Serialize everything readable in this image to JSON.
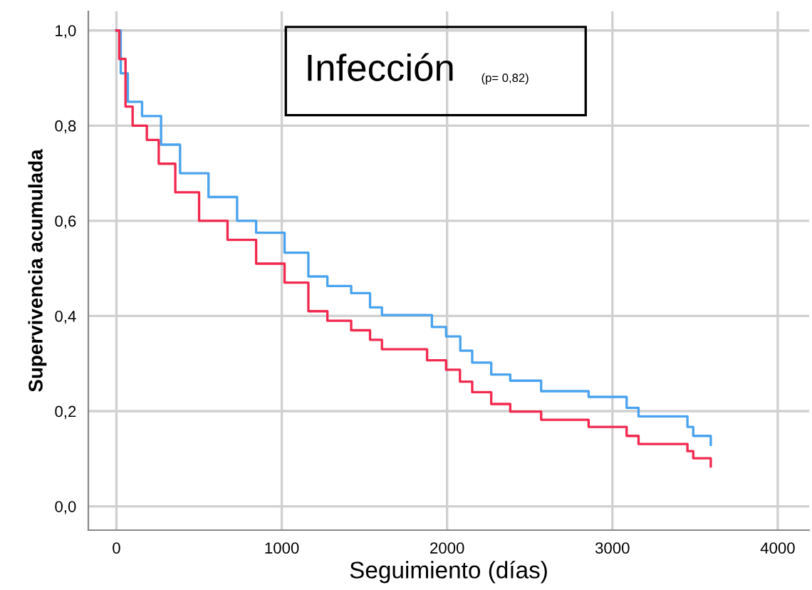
{
  "chart_data": {
    "type": "step",
    "title": "Infección",
    "annotations": [
      "(p= 0,82)"
    ],
    "xlabel": "Seguimiento (días)",
    "ylabel": "Supervivencia acumulada",
    "xlim": [
      -170,
      4190
    ],
    "ylim": [
      -0.05,
      1.04
    ],
    "xticks": [
      0,
      1000,
      2000,
      3000,
      4000
    ],
    "yticks": [
      {
        "value": 0,
        "label": "0,0"
      },
      {
        "value": 0.2,
        "label": "0,2"
      },
      {
        "value": 0.4,
        "label": "0,4"
      },
      {
        "value": 0.6,
        "label": "0,6"
      },
      {
        "value": 0.8,
        "label": "0,8"
      },
      {
        "value": 1.0,
        "label": "1,0"
      }
    ],
    "grid": true,
    "legend": false,
    "series": [
      {
        "color": "#4aa3ee",
        "x": [
          0,
          26,
          69,
          155,
          270,
          385,
          557,
          730,
          845,
          1017,
          1161,
          1276,
          1420,
          1534,
          1606,
          1779,
          1908,
          1994,
          2080,
          2152,
          2267,
          2382,
          2569,
          2856,
          3086,
          3158,
          3454,
          3489,
          3595
        ],
        "values": [
          1.0,
          0.91,
          0.85,
          0.82,
          0.76,
          0.7,
          0.65,
          0.6,
          0.575,
          0.533,
          0.483,
          0.463,
          0.448,
          0.418,
          0.402,
          0.402,
          0.377,
          0.357,
          0.327,
          0.302,
          0.277,
          0.264,
          0.242,
          0.23,
          0.207,
          0.189,
          0.167,
          0.148,
          0.129
        ]
      },
      {
        "color": "#f2294f",
        "x": [
          0,
          17,
          55,
          98,
          184,
          256,
          356,
          500,
          672,
          845,
          1017,
          1161,
          1276,
          1420,
          1534,
          1606,
          1779,
          1879,
          1994,
          2078,
          2152,
          2267,
          2382,
          2569,
          2856,
          3086,
          3158,
          3454,
          3489,
          3595
        ],
        "values": [
          1.0,
          0.94,
          0.84,
          0.8,
          0.77,
          0.72,
          0.66,
          0.6,
          0.56,
          0.51,
          0.47,
          0.41,
          0.39,
          0.37,
          0.35,
          0.33,
          0.33,
          0.307,
          0.287,
          0.262,
          0.24,
          0.215,
          0.199,
          0.182,
          0.167,
          0.148,
          0.131,
          0.116,
          0.101,
          0.084
        ]
      }
    ]
  }
}
